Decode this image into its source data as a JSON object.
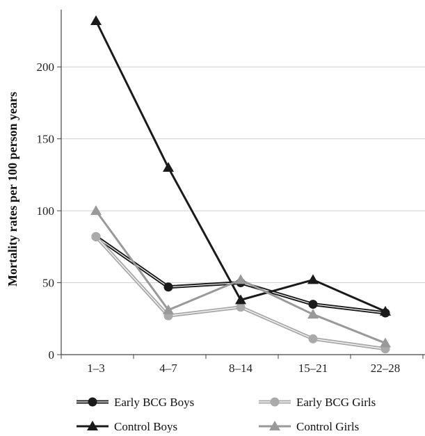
{
  "chart_data": {
    "type": "line",
    "title": "",
    "xlabel": "",
    "ylabel": "Mortality rates per 100 person years",
    "categories": [
      "1–3",
      "4–7",
      "8–14",
      "15–21",
      "22–28"
    ],
    "ylim": [
      0,
      232
    ],
    "yticks": [
      0,
      50,
      100,
      150,
      200
    ],
    "grid": "horizontal",
    "legend_position": "bottom",
    "series": [
      {
        "name": "Early BCG Boys",
        "values": [
          82,
          47,
          50,
          35,
          29
        ],
        "color": "#1a1a1a",
        "marker": "circle",
        "line_style": "double"
      },
      {
        "name": "Early BCG Girls",
        "values": [
          82,
          27,
          33,
          11,
          4
        ],
        "color": "#aaaaaa",
        "marker": "circle",
        "line_style": "double"
      },
      {
        "name": "Control Boys",
        "values": [
          232,
          130,
          38,
          52,
          30
        ],
        "color": "#1a1a1a",
        "marker": "triangle",
        "line_style": "solid"
      },
      {
        "name": "Control Girls",
        "values": [
          100,
          31,
          52,
          28,
          8
        ],
        "color": "#999999",
        "marker": "triangle",
        "line_style": "solid"
      }
    ]
  }
}
